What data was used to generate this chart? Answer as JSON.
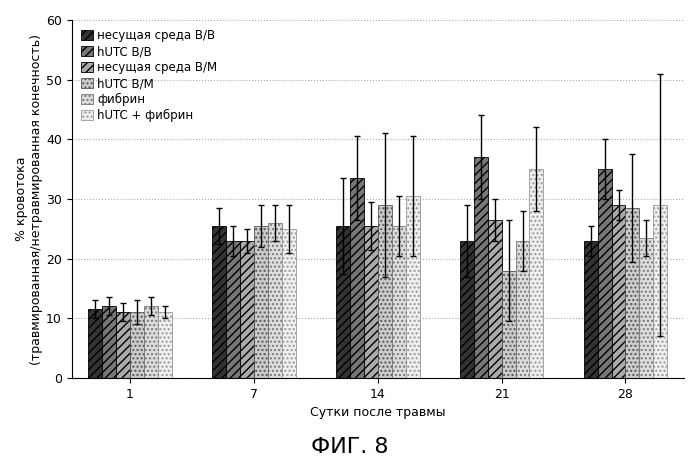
{
  "title": "ФИГ. 8",
  "ylabel": "% кровотока\n(травмированная/нетравмированная конечность)",
  "xlabel": "Сутки после травмы",
  "groups": [
    1,
    7,
    14,
    21,
    28
  ],
  "series_labels": [
    "несущая среда В/В",
    "hUTC В/В",
    "несущая среда В/М",
    "hUTC В/М",
    "фибрин",
    "hUTC + фибрин"
  ],
  "bar_values": [
    [
      11.5,
      12.0,
      11.0,
      11.0,
      12.0,
      11.0
    ],
    [
      25.5,
      23.0,
      23.0,
      25.5,
      26.0,
      25.0
    ],
    [
      25.5,
      33.5,
      25.5,
      29.0,
      25.5,
      30.5
    ],
    [
      23.0,
      37.0,
      26.5,
      18.0,
      23.0,
      35.0
    ],
    [
      23.0,
      35.0,
      29.0,
      28.5,
      23.5,
      29.0
    ]
  ],
  "bar_errors": [
    [
      1.5,
      1.5,
      1.5,
      2.0,
      1.5,
      1.0
    ],
    [
      3.0,
      2.5,
      2.0,
      3.5,
      3.0,
      4.0
    ],
    [
      8.0,
      7.0,
      4.0,
      12.0,
      5.0,
      10.0
    ],
    [
      6.0,
      7.0,
      3.5,
      8.5,
      5.0,
      7.0
    ],
    [
      2.5,
      5.0,
      2.5,
      9.0,
      3.0,
      22.0
    ]
  ],
  "ylim": [
    0,
    60
  ],
  "yticks": [
    0,
    10,
    20,
    30,
    40,
    50,
    60
  ],
  "bar_styles": [
    {
      "hatch": "////",
      "facecolor": "#333333",
      "edgecolor": "#000000"
    },
    {
      "hatch": "////",
      "facecolor": "#777777",
      "edgecolor": "#000000"
    },
    {
      "hatch": "////",
      "facecolor": "#aaaaaa",
      "edgecolor": "#000000"
    },
    {
      "hatch": "....",
      "facecolor": "#cccccc",
      "edgecolor": "#555555"
    },
    {
      "hatch": "....",
      "facecolor": "#dddddd",
      "edgecolor": "#777777"
    },
    {
      "hatch": "....",
      "facecolor": "#f0f0f0",
      "edgecolor": "#999999"
    }
  ],
  "legend_symbols": [
    "*",
    "*",
    "*",
    "*",
    "·",
    "·"
  ],
  "background_color": "#ffffff",
  "grid_color": "#aaaaaa",
  "figure_title_fontsize": 16,
  "axis_label_fontsize": 9,
  "tick_fontsize": 9,
  "legend_fontsize": 8.5
}
